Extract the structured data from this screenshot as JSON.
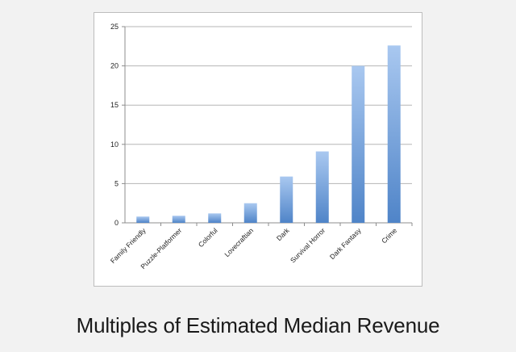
{
  "title": "Multiples of Estimated Median Revenue",
  "colors": {
    "bar_top": "#a9c8f0",
    "bar_bottom": "#4f84c8",
    "gridline": "#b5b5b5",
    "axis": "#8c8c8c"
  },
  "chart_data": {
    "type": "bar",
    "title": "",
    "xlabel": "",
    "ylabel": "",
    "categories": [
      "Family Friendly",
      "Puzzle-Platformer",
      "Colorful",
      "Lovecraftian",
      "Dark",
      "Survival Horror",
      "Dark Fantasy",
      "Crime"
    ],
    "values": [
      0.8,
      0.9,
      1.2,
      2.5,
      5.9,
      9.1,
      20.0,
      22.6
    ],
    "ylim": [
      0,
      25
    ],
    "yticks": [
      0,
      5,
      10,
      15,
      20,
      25
    ],
    "grid": true,
    "legend": "none"
  }
}
